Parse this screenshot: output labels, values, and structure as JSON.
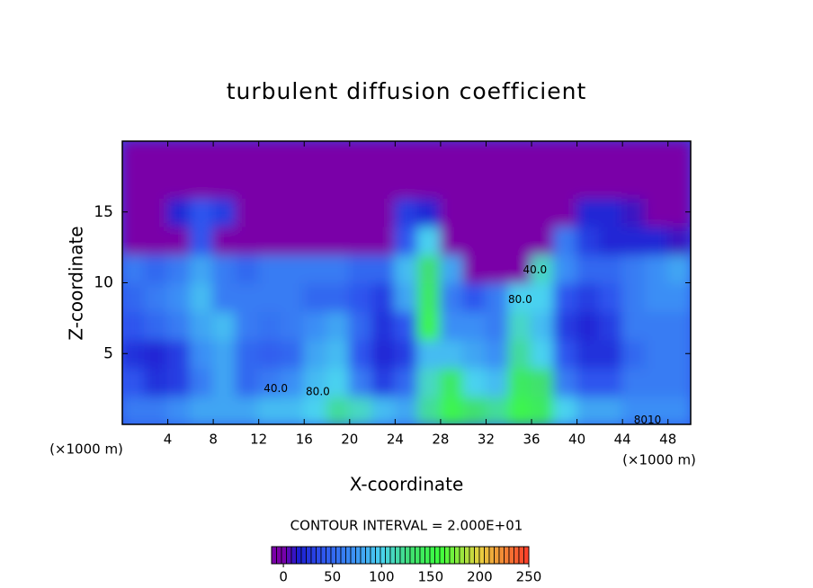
{
  "chart_data": {
    "type": "contour",
    "title": "turbulent diffusion coefficient",
    "x_label": "X-coordinate",
    "y_label": "Z-coordinate",
    "x_unit": "(×1000 m)",
    "x_unit_right": "(×1000 m)",
    "contour_note": "CONTOUR INTERVAL = 2.000E+01",
    "xlim": [
      0,
      50
    ],
    "ylim": [
      0,
      20
    ],
    "xticks": [
      4,
      8,
      12,
      16,
      20,
      24,
      28,
      32,
      36,
      40,
      44,
      48
    ],
    "yticks": [
      5,
      10,
      15
    ],
    "x": [
      1,
      3,
      5,
      7,
      9,
      11,
      13,
      15,
      17,
      19,
      21,
      23,
      25,
      27,
      29,
      31,
      33,
      35,
      37,
      39,
      41,
      43,
      45,
      47,
      49
    ],
    "y": [
      1,
      3,
      5,
      7,
      9,
      11,
      13,
      15,
      17,
      19
    ],
    "z": [
      [
        60,
        60,
        70,
        80,
        80,
        80,
        90,
        90,
        100,
        120,
        110,
        90,
        80,
        120,
        150,
        130,
        120,
        150,
        140,
        100,
        80,
        80,
        70,
        70,
        70
      ],
      [
        40,
        25,
        30,
        60,
        80,
        50,
        60,
        70,
        90,
        100,
        60,
        30,
        50,
        110,
        140,
        100,
        90,
        140,
        130,
        60,
        40,
        40,
        60,
        60,
        60
      ],
      [
        25,
        20,
        30,
        70,
        80,
        50,
        45,
        50,
        80,
        90,
        40,
        20,
        30,
        90,
        90,
        80,
        70,
        120,
        100,
        40,
        25,
        25,
        50,
        60,
        60
      ],
      [
        40,
        50,
        60,
        80,
        90,
        60,
        55,
        60,
        70,
        80,
        50,
        25,
        40,
        150,
        70,
        70,
        60,
        110,
        90,
        30,
        20,
        30,
        60,
        60,
        60
      ],
      [
        50,
        60,
        70,
        90,
        60,
        60,
        60,
        60,
        50,
        50,
        40,
        30,
        80,
        140,
        60,
        40,
        60,
        100,
        100,
        40,
        30,
        40,
        60,
        70,
        70
      ],
      [
        60,
        50,
        60,
        80,
        60,
        50,
        60,
        60,
        60,
        60,
        50,
        50,
        90,
        130,
        80,
        0,
        0,
        0,
        110,
        70,
        50,
        50,
        60,
        70,
        80
      ],
      [
        0,
        0,
        0,
        40,
        0,
        0,
        0,
        0,
        0,
        0,
        0,
        0,
        40,
        100,
        0,
        0,
        0,
        0,
        0,
        60,
        30,
        20,
        20,
        20,
        10
      ],
      [
        0,
        0,
        20,
        40,
        30,
        0,
        0,
        0,
        0,
        0,
        0,
        0,
        30,
        20,
        0,
        0,
        0,
        0,
        0,
        0,
        20,
        20,
        10,
        0,
        0
      ],
      [
        0,
        0,
        0,
        0,
        0,
        0,
        0,
        0,
        0,
        0,
        0,
        0,
        0,
        0,
        0,
        0,
        0,
        0,
        0,
        0,
        0,
        0,
        0,
        0,
        0
      ],
      [
        0,
        0,
        0,
        0,
        0,
        0,
        0,
        0,
        0,
        0,
        0,
        0,
        0,
        0,
        0,
        0,
        0,
        0,
        0,
        0,
        0,
        0,
        0,
        0,
        0
      ]
    ],
    "colorscale": [
      [
        0,
        "#7a00a8"
      ],
      [
        15,
        "#1c1ccf"
      ],
      [
        40,
        "#2f55ee"
      ],
      [
        70,
        "#3b8ef5"
      ],
      [
        100,
        "#4ad2f0"
      ],
      [
        130,
        "#3fe070"
      ],
      [
        160,
        "#3cff3c"
      ],
      [
        200,
        "#e8d040"
      ],
      [
        250,
        "#ff3a2a"
      ]
    ],
    "clim": [
      -12,
      250
    ],
    "cticks": [
      0,
      50,
      100,
      150,
      200,
      250
    ],
    "annotations": [
      {
        "text": "40.0",
        "x": 13.5,
        "y": 2.5
      },
      {
        "text": "80.0",
        "x": 17.2,
        "y": 2.3
      },
      {
        "text": "40.0",
        "x": 36.3,
        "y": 10.9
      },
      {
        "text": "80.0",
        "x": 35.0,
        "y": 8.8
      },
      {
        "text": "8010",
        "x": 46.2,
        "y": 0.3
      }
    ]
  }
}
